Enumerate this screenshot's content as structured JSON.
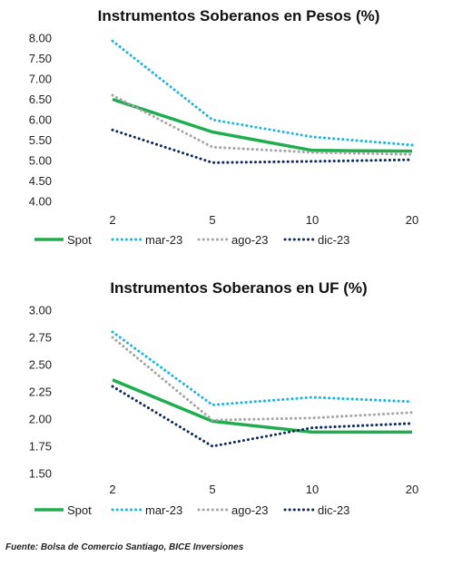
{
  "source": "Fuente: Bolsa de Comercio Santiago, BICE Inversiones",
  "chart_data": [
    {
      "type": "line",
      "title": "Instrumentos Soberanos en Pesos (%)",
      "categories": [
        "2",
        "5",
        "10",
        "20"
      ],
      "ylim": [
        4.0,
        8.0
      ],
      "yticks": [
        "8.00",
        "7.50",
        "7.00",
        "6.50",
        "6.00",
        "5.50",
        "5.00",
        "4.50",
        "4.00"
      ],
      "grid": false,
      "legend_position": "bottom",
      "series": [
        {
          "name": "Spot",
          "values": [
            6.5,
            5.7,
            5.25,
            5.23
          ],
          "color": "#1fad4e",
          "style": "solid"
        },
        {
          "name": "mar-23",
          "values": [
            7.93,
            6.0,
            5.58,
            5.38
          ],
          "color": "#17b6e6",
          "style": "dotted"
        },
        {
          "name": "ago-23",
          "values": [
            6.6,
            5.33,
            5.2,
            5.15
          ],
          "color": "#a6a6a6",
          "style": "dotted"
        },
        {
          "name": "dic-23",
          "values": [
            5.75,
            4.95,
            4.98,
            5.02
          ],
          "color": "#0d2a5c",
          "style": "dotted"
        }
      ]
    },
    {
      "type": "line",
      "title": "Instrumentos Soberanos en UF (%)",
      "categories": [
        "2",
        "5",
        "10",
        "20"
      ],
      "ylim": [
        1.5,
        3.0
      ],
      "yticks": [
        "3.00",
        "2.75",
        "2.50",
        "2.25",
        "2.00",
        "1.75",
        "1.50"
      ],
      "grid": false,
      "legend_position": "bottom",
      "series": [
        {
          "name": "Spot",
          "values": [
            2.36,
            1.98,
            1.88,
            1.88
          ],
          "color": "#1fad4e",
          "style": "solid"
        },
        {
          "name": "mar-23",
          "values": [
            2.8,
            2.13,
            2.2,
            2.16
          ],
          "color": "#17b6e6",
          "style": "dotted"
        },
        {
          "name": "ago-23",
          "values": [
            2.75,
            1.99,
            2.01,
            2.06
          ],
          "color": "#a6a6a6",
          "style": "dotted"
        },
        {
          "name": "dic-23",
          "values": [
            2.3,
            1.75,
            1.92,
            1.96
          ],
          "color": "#0d2a5c",
          "style": "dotted"
        }
      ]
    }
  ]
}
